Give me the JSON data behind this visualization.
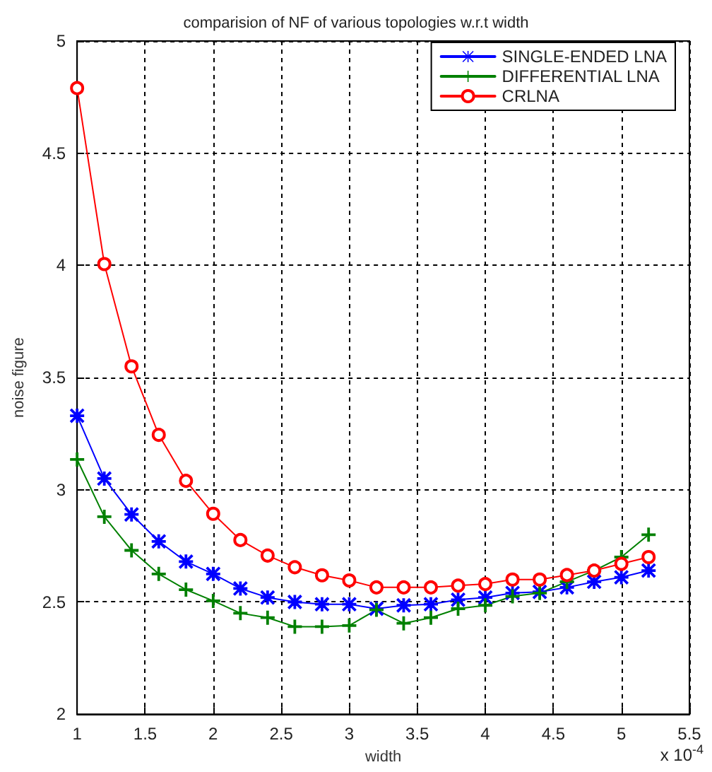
{
  "chart_data": {
    "type": "line",
    "title": "comparision of NF of various topologies w.r.t width",
    "xlabel": "width",
    "ylabel": "noise figure",
    "annotations": [
      "x 10$^{-4}$"
    ],
    "x": [
      1,
      1.2,
      1.4,
      1.6,
      1.8,
      2,
      2.2,
      2.4,
      2.6,
      2.8,
      3,
      3.2,
      3.4,
      3.6,
      3.8,
      4,
      4.2,
      4.4,
      4.6,
      4.8,
      5,
      5.2
    ],
    "series": [
      {
        "name": "SINGLE-ENDED LNA",
        "color": "#0000ff",
        "marker": "star",
        "values": [
          3.33,
          3.05,
          2.89,
          2.77,
          2.68,
          2.625,
          2.56,
          2.52,
          2.5,
          2.49,
          2.49,
          2.47,
          2.485,
          2.49,
          2.51,
          2.52,
          2.54,
          2.545,
          2.565,
          2.59,
          2.61,
          2.64
        ]
      },
      {
        "name": "DIFFERENTIAL LNA",
        "color": "#008000",
        "marker": "cross",
        "values": [
          3.135,
          2.88,
          2.73,
          2.625,
          2.555,
          2.505,
          2.45,
          2.43,
          2.39,
          2.39,
          2.395,
          2.465,
          2.405,
          2.43,
          2.47,
          2.485,
          2.525,
          2.54,
          2.59,
          2.64,
          2.7,
          2.8
        ]
      },
      {
        "name": "CRLNA",
        "color": "#ff0000",
        "marker": "circle",
        "values": [
          4.79,
          4.006,
          3.55,
          3.245,
          3.04,
          2.893,
          2.776,
          2.707,
          2.655,
          2.619,
          2.596,
          2.565,
          2.565,
          2.565,
          2.573,
          2.58,
          2.6,
          2.6,
          2.62,
          2.64,
          2.67,
          2.7
        ]
      }
    ],
    "xlim": [
      1,
      5.5
    ],
    "xticks": [
      1,
      1.5,
      2,
      2.5,
      3,
      3.5,
      4,
      4.5,
      5,
      5.5
    ],
    "ylim": [
      2,
      5
    ],
    "yticks": [
      2,
      2.5,
      3,
      3.5,
      4,
      4.5,
      5
    ],
    "grid": true,
    "legend": "top right",
    "line_style": "solid"
  }
}
